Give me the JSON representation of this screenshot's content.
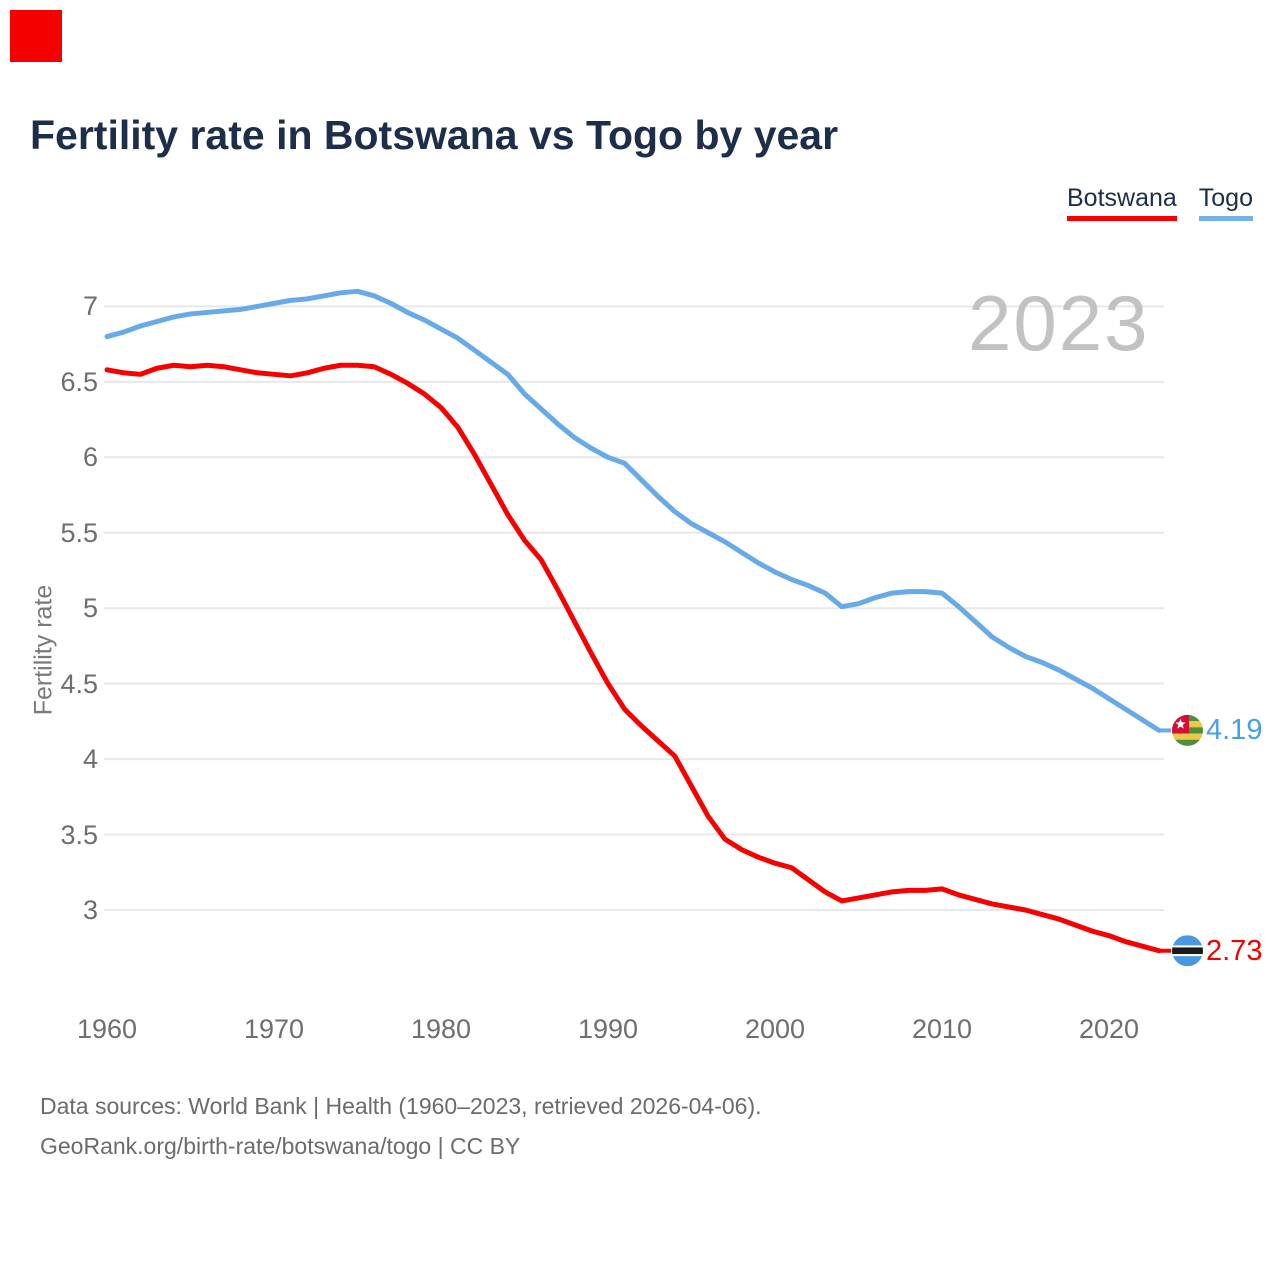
{
  "title": "Fertility rate in Botswana vs Togo by year",
  "watermark": "2023",
  "legend": [
    {
      "label": "Botswana",
      "color": "#f40000"
    },
    {
      "label": "Togo",
      "color": "#74b1ea"
    }
  ],
  "overlay": {
    "marker_color": "#f40000"
  },
  "y_axis": {
    "label": "Fertility rate",
    "ticks": [
      "7",
      "6.5",
      "6",
      "5.5",
      "5",
      "4.5",
      "4",
      "3.5",
      "3"
    ]
  },
  "x_axis": {
    "ticks": [
      "1960",
      "1970",
      "1980",
      "1990",
      "2000",
      "2010",
      "2020"
    ]
  },
  "end_labels": [
    {
      "series": "Togo",
      "value": "4.19",
      "color": "#49a0e8"
    },
    {
      "series": "Botswana",
      "value": "2.73",
      "color": "#f40000"
    }
  ],
  "footer": {
    "line1": "Data sources: World Bank | Health (1960–2023, retrieved 2026-04-06).",
    "line2": "GeoRank.org/birth-rate/botswana/togo | CC BY"
  },
  "colors": {
    "gridline": "#e8e8e8",
    "axis_text": "#6e6e6e",
    "title_text": "#1c2e4a",
    "watermark_text": "#c2c2c2",
    "footer_text": "#6b6b6b",
    "botswana_line": "#f80000",
    "togo_line": "#68aae8"
  },
  "chart_data": {
    "type": "line",
    "title": "Fertility rate in Botswana vs Togo by year",
    "xlabel": "",
    "ylabel": "Fertility rate",
    "ylim": [
      2.6,
      7.25
    ],
    "xlim": [
      1960,
      2023
    ],
    "grid": "horizontal",
    "legend_position": "top-right",
    "x": [
      1960,
      1961,
      1962,
      1963,
      1964,
      1965,
      1966,
      1967,
      1968,
      1969,
      1970,
      1971,
      1972,
      1973,
      1974,
      1975,
      1976,
      1977,
      1978,
      1979,
      1980,
      1981,
      1982,
      1983,
      1984,
      1985,
      1986,
      1987,
      1988,
      1989,
      1990,
      1991,
      1992,
      1993,
      1994,
      1995,
      1996,
      1997,
      1998,
      1999,
      2000,
      2001,
      2002,
      2003,
      2004,
      2005,
      2006,
      2007,
      2008,
      2009,
      2010,
      2011,
      2012,
      2013,
      2014,
      2015,
      2016,
      2017,
      2018,
      2019,
      2020,
      2021,
      2022,
      2023
    ],
    "series": [
      {
        "name": "Botswana",
        "color": "#f80000",
        "values": [
          6.58,
          6.56,
          6.55,
          6.59,
          6.61,
          6.6,
          6.61,
          6.6,
          6.58,
          6.56,
          6.55,
          6.54,
          6.56,
          6.59,
          6.61,
          6.61,
          6.6,
          6.55,
          6.49,
          6.42,
          6.33,
          6.2,
          6.02,
          5.82,
          5.62,
          5.45,
          5.32,
          5.12,
          4.91,
          4.7,
          4.5,
          4.33,
          4.22,
          4.12,
          4.02,
          3.82,
          3.62,
          3.47,
          3.4,
          3.35,
          3.31,
          3.28,
          3.2,
          3.12,
          3.06,
          3.08,
          3.1,
          3.12,
          3.13,
          3.13,
          3.14,
          3.1,
          3.07,
          3.04,
          3.02,
          3.0,
          2.97,
          2.94,
          2.9,
          2.86,
          2.83,
          2.79,
          2.76,
          2.73
        ]
      },
      {
        "name": "Togo",
        "color": "#68aae8",
        "values": [
          6.8,
          6.83,
          6.87,
          6.9,
          6.93,
          6.95,
          6.96,
          6.97,
          6.98,
          7.0,
          7.02,
          7.04,
          7.05,
          7.07,
          7.09,
          7.1,
          7.07,
          7.02,
          6.96,
          6.91,
          6.85,
          6.79,
          6.71,
          6.63,
          6.55,
          6.42,
          6.32,
          6.22,
          6.13,
          6.06,
          6.0,
          5.96,
          5.85,
          5.74,
          5.64,
          5.56,
          5.5,
          5.44,
          5.37,
          5.3,
          5.24,
          5.19,
          5.15,
          5.1,
          5.01,
          5.03,
          5.07,
          5.1,
          5.11,
          5.11,
          5.1,
          5.01,
          4.91,
          4.81,
          4.74,
          4.68,
          4.64,
          4.59,
          4.53,
          4.47,
          4.4,
          4.33,
          4.26,
          4.19
        ]
      }
    ]
  }
}
